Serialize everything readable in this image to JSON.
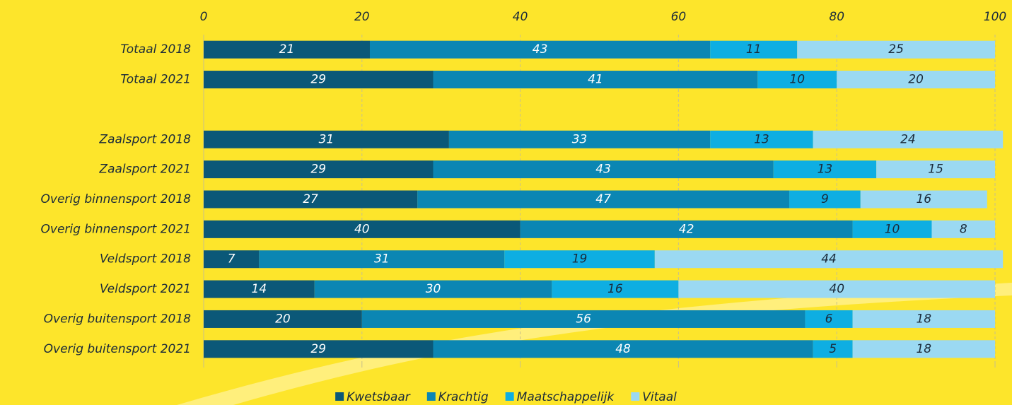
{
  "chart_data": {
    "type": "stacked-barh",
    "categories": [
      "Totaal 2018",
      "Totaal 2021",
      null,
      "Zaalsport 2018",
      "Zaalsport 2021",
      "Overig binnensport 2018",
      "Overig binnensport 2021",
      "Veldsport 2018",
      "Veldsport 2021",
      "Overig buitensport 2018",
      "Overig buitensport 2021"
    ],
    "series": [
      {
        "name": "Kwetsbaar",
        "color": "#0b5878",
        "values": [
          21,
          29,
          null,
          31,
          29,
          27,
          40,
          7,
          14,
          20,
          29
        ]
      },
      {
        "name": "Krachtig",
        "color": "#0b86b3",
        "values": [
          43,
          41,
          null,
          33,
          43,
          47,
          42,
          31,
          30,
          56,
          48
        ]
      },
      {
        "name": "Maatschappelijk",
        "color": "#0eaee2",
        "values": [
          11,
          10,
          null,
          13,
          13,
          9,
          10,
          19,
          16,
          6,
          5
        ]
      },
      {
        "name": "Vitaal",
        "color": "#9bd9f2",
        "values": [
          25,
          20,
          null,
          24,
          15,
          16,
          8,
          44,
          40,
          18,
          18
        ]
      }
    ],
    "xlim": [
      0,
      100
    ],
    "xticks": [
      0,
      20,
      40,
      60,
      80,
      100
    ],
    "grid": true,
    "legend": "bottom"
  }
}
